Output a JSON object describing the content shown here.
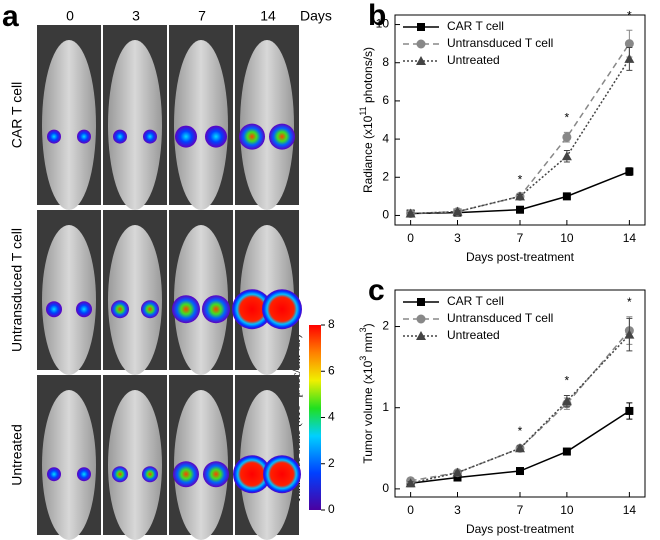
{
  "panel_a": {
    "label": "a",
    "days": [
      "0",
      "3",
      "7",
      "14"
    ],
    "days_label": "Days",
    "rows": [
      "CAR T cell",
      "Untransduced T cell",
      "Untreated"
    ],
    "colorbar_label": [
      "Radiance scale (x10",
      "9",
      " p/sec/cm",
      "2",
      "/sr)"
    ],
    "colorbar_ticks": [
      0,
      2,
      4,
      6,
      8
    ],
    "colorbar_lim": [
      0,
      8
    ]
  },
  "chart_data": [
    {
      "type": "line",
      "label": "b",
      "ylabel": [
        "Radiance (x10",
        "11",
        " photons/s)"
      ],
      "xlabel": "Days post-treatment",
      "x": [
        0,
        3,
        7,
        10,
        14
      ],
      "xlim": [
        -1,
        15
      ],
      "xticks": [
        0,
        3,
        7,
        10,
        14
      ],
      "ylim": [
        -0.5,
        10.5
      ],
      "yticks": [
        0,
        2,
        4,
        6,
        8,
        10
      ],
      "legend": "upper left",
      "annotations": [
        "*",
        "*",
        "*"
      ],
      "series": [
        {
          "name": "CAR T cell",
          "color": "#000000",
          "line_style": "solid",
          "marker": "square",
          "values": [
            0.1,
            0.15,
            0.3,
            1.0,
            2.3
          ],
          "errors": [
            0.05,
            0.05,
            0.05,
            0.1,
            0.2
          ]
        },
        {
          "name": "Untransduced T cell",
          "color": "#888888",
          "line_style": "dashed",
          "marker": "circle",
          "values": [
            0.1,
            0.2,
            1.0,
            4.1,
            9.0
          ],
          "errors": [
            0.05,
            0.05,
            0.1,
            0.25,
            0.7
          ]
        },
        {
          "name": "Untreated",
          "color": "#444444",
          "line_style": "dotted",
          "marker": "triangle",
          "values": [
            0.1,
            0.2,
            1.0,
            3.1,
            8.2
          ],
          "errors": [
            0.05,
            0.05,
            0.1,
            0.3,
            0.6
          ]
        }
      ]
    },
    {
      "type": "line",
      "label": "c",
      "ylabel": [
        "Tumor volume (x10",
        "3",
        " mm",
        "3",
        ")"
      ],
      "xlabel": "Days post-treatment",
      "x": [
        0,
        3,
        7,
        10,
        14
      ],
      "xlim": [
        -1,
        15
      ],
      "xticks": [
        0,
        3,
        7,
        10,
        14
      ],
      "ylim": [
        -0.1,
        2.45
      ],
      "yticks": [
        0,
        1,
        2
      ],
      "legend": "upper left",
      "annotations": [
        "*",
        "*",
        "*"
      ],
      "series": [
        {
          "name": "CAR T cell",
          "color": "#000000",
          "line_style": "solid",
          "marker": "square",
          "values": [
            0.07,
            0.14,
            0.22,
            0.46,
            0.96
          ],
          "errors": [
            0.02,
            0.02,
            0.02,
            0.03,
            0.1
          ]
        },
        {
          "name": "Untransduced T cell",
          "color": "#888888",
          "line_style": "dashed",
          "marker": "circle",
          "values": [
            0.1,
            0.2,
            0.5,
            1.05,
            1.95
          ],
          "errors": [
            0.02,
            0.02,
            0.03,
            0.07,
            0.17
          ]
        },
        {
          "name": "Untreated",
          "color": "#444444",
          "line_style": "dotted",
          "marker": "triangle",
          "values": [
            0.07,
            0.2,
            0.5,
            1.08,
            1.9
          ],
          "errors": [
            0.02,
            0.02,
            0.03,
            0.07,
            0.2
          ]
        }
      ]
    }
  ]
}
